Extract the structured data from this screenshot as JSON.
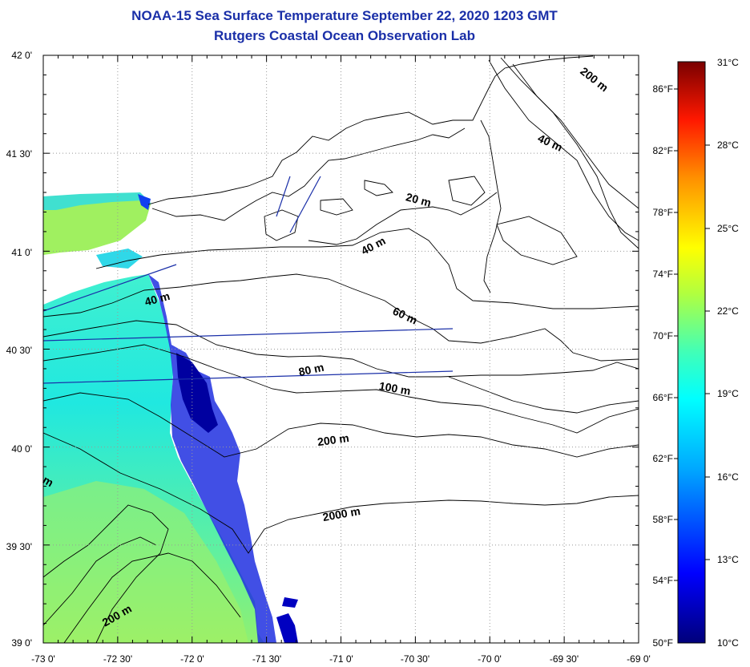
{
  "header": {
    "title": "NOAA-15 Sea Surface Temperature September 22, 2020 1203 GMT",
    "subtitle": "Rutgers Coastal Ocean Observation Lab"
  },
  "map": {
    "lon_labels": [
      "-73 0'",
      "-72 30'",
      "-72 0'",
      "-71 30'",
      "-71 0'",
      "-70 30'",
      "-70 0'",
      "-69 30'",
      "-69 0'"
    ],
    "lat_labels": [
      "42 0'",
      "41 30'",
      "41 0'",
      "40 30'",
      "40 0'",
      "39 30'",
      "39 0'"
    ],
    "depth_labels": [
      "200 m",
      "40 m",
      "20 m",
      "40 m",
      "40 m",
      "60 m",
      "80 m",
      "100 m",
      "200 m",
      "2000 m",
      "m",
      "200 m"
    ],
    "land_color": "#ffffff",
    "contour_color": "#000000",
    "track_color": "#1a2fa8"
  },
  "colorbar": {
    "celsius_labels": [
      "31°C",
      "28°C",
      "25°C",
      "22°C",
      "19°C",
      "16°C",
      "13°C",
      "10°C"
    ],
    "fahrenheit_labels": [
      "86°F",
      "82°F",
      "78°F",
      "74°F",
      "70°F",
      "66°F",
      "62°F",
      "58°F",
      "54°F",
      "50°F"
    ],
    "range_celsius": [
      10,
      31
    ],
    "palette": [
      "#000080",
      "#0000ff",
      "#00a0ff",
      "#00ffff",
      "#40ffb0",
      "#a0ff40",
      "#ffff00",
      "#ff9000",
      "#ff2000",
      "#800000"
    ]
  }
}
